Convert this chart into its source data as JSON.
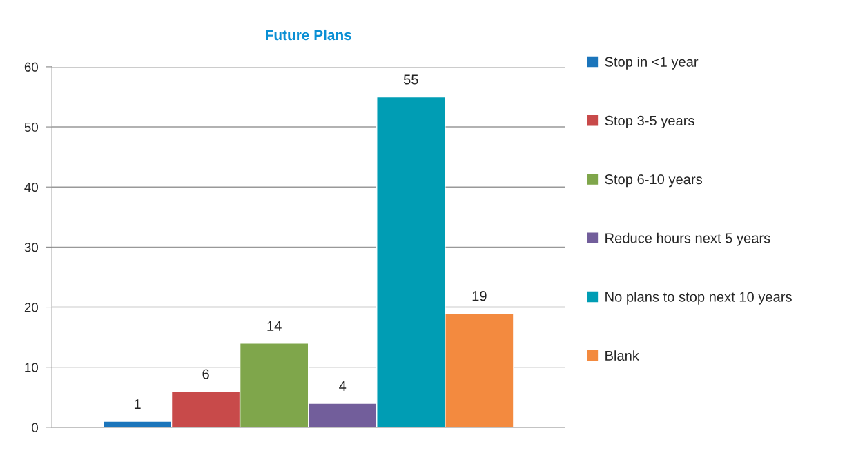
{
  "chart_data": {
    "type": "bar",
    "title": "Future Plans",
    "categories": [
      null
    ],
    "series": [
      {
        "name": "Stop in <1 year",
        "color": "#1b75bb",
        "values": [
          1
        ]
      },
      {
        "name": "Stop 3-5 years",
        "color": "#c84a4a",
        "values": [
          6
        ]
      },
      {
        "name": "Stop 6-10 years",
        "color": "#7fa64b",
        "values": [
          14
        ]
      },
      {
        "name": "Reduce hours next 5 years",
        "color": "#725e9b",
        "values": [
          4
        ]
      },
      {
        "name": "No plans to stop next 10 years",
        "color": "#009db4",
        "values": [
          55
        ]
      },
      {
        "name": "Blank",
        "color": "#f38a3f",
        "values": [
          19
        ]
      }
    ],
    "ylim": [
      0,
      60
    ],
    "yticks": [
      0,
      10,
      20,
      30,
      40,
      50,
      60
    ],
    "grid": "y",
    "legend": "right",
    "data_labels": true
  }
}
